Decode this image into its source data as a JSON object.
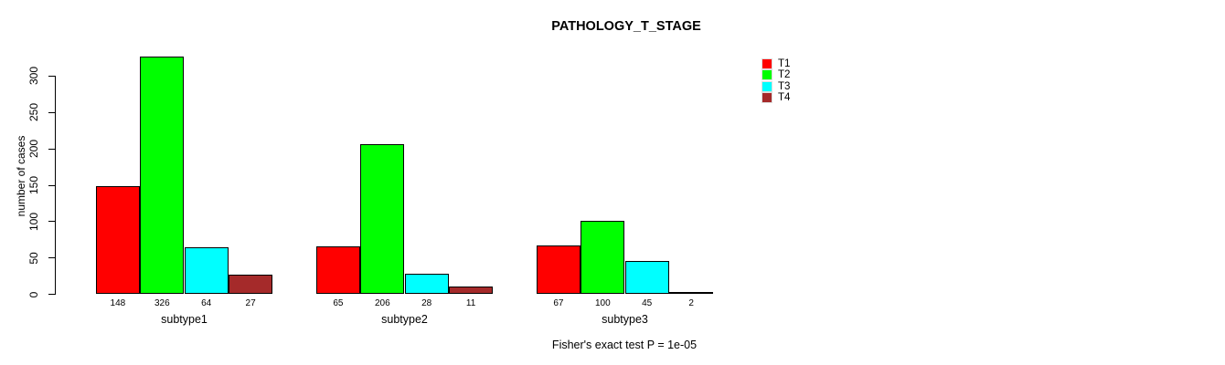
{
  "chart_data": {
    "type": "bar",
    "title": "PATHOLOGY_T_STAGE",
    "xlabel": "",
    "ylabel": "number of cases",
    "ylim": [
      0,
      300
    ],
    "yticks": [
      0,
      50,
      100,
      150,
      200,
      250,
      300
    ],
    "grid": false,
    "legend_position": "top-right",
    "bar_value_labels_shown": true,
    "categories": [
      "subtype1",
      "subtype2",
      "subtype3"
    ],
    "series": [
      {
        "name": "T1",
        "color": "#ff0000",
        "values": [
          148,
          65,
          67
        ]
      },
      {
        "name": "T2",
        "color": "#00ff00",
        "values": [
          326,
          206,
          100
        ]
      },
      {
        "name": "T3",
        "color": "#00ffff",
        "values": [
          64,
          28,
          45
        ]
      },
      {
        "name": "T4",
        "color": "#a52a2a",
        "values": [
          27,
          11,
          2
        ]
      }
    ],
    "footnote": "Fisher's exact test P = 1e-05"
  }
}
